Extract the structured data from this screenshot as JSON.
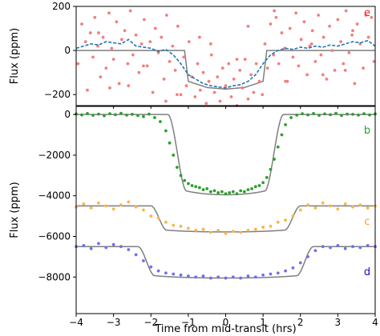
{
  "chart_data": [
    {
      "type": "scatter",
      "panel": "top",
      "xlim": [
        -4,
        4
      ],
      "ylim": [
        -250,
        200
      ],
      "yticks": [
        -200,
        0,
        200
      ],
      "ytick_labels": [
        "−200",
        "0",
        "200"
      ],
      "ylabel": "Flux (ppm)",
      "xlabel": "",
      "grid": false,
      "annotations": [
        {
          "text": "e",
          "color": "#e8262b"
        }
      ],
      "model": {
        "name": "",
        "color": "#7f7f7f",
        "x": [
          -4.0,
          -1.1,
          -1.0,
          -0.5,
          0.0,
          0.5,
          1.0,
          1.1,
          4.0
        ],
        "y": [
          0,
          0,
          -140,
          -168,
          -175,
          -168,
          -140,
          0,
          0
        ]
      },
      "binned": {
        "color": "#1f77b4",
        "style": "dashed",
        "x": [
          -4.0,
          -3.8,
          -3.6,
          -3.4,
          -3.2,
          -3.0,
          -2.8,
          -2.6,
          -2.4,
          -2.2,
          -2.0,
          -1.8,
          -1.6,
          -1.4,
          -1.2,
          -1.0,
          -0.8,
          -0.6,
          -0.4,
          -0.2,
          0.0,
          0.2,
          0.4,
          0.6,
          0.8,
          1.0,
          1.2,
          1.4,
          1.6,
          1.8,
          2.0,
          2.2,
          2.4,
          2.6,
          2.8,
          3.0,
          3.2,
          3.4,
          3.6,
          3.8,
          4.0
        ],
        "y": [
          10,
          20,
          30,
          25,
          40,
          35,
          30,
          50,
          20,
          15,
          10,
          -5,
          5,
          -20,
          -60,
          -110,
          -130,
          -150,
          -160,
          -165,
          -170,
          -160,
          -155,
          -140,
          -110,
          -60,
          -20,
          0,
          10,
          5,
          15,
          10,
          20,
          15,
          25,
          20,
          30,
          40,
          35,
          45,
          20
        ]
      },
      "points": {
        "color": "#f08080",
        "x": [
          -3.95,
          -3.85,
          -3.75,
          -3.7,
          -3.62,
          -3.55,
          -3.5,
          -3.42,
          -3.35,
          -3.28,
          -3.2,
          -3.12,
          -3.05,
          -3.0,
          -2.92,
          -2.85,
          -2.78,
          -2.7,
          -2.62,
          -2.55,
          -2.48,
          -2.4,
          -2.32,
          -2.25,
          -2.18,
          -2.1,
          -2.02,
          -1.95,
          -1.88,
          -1.8,
          -1.72,
          -1.65,
          -1.58,
          -1.5,
          -1.42,
          -1.35,
          -1.28,
          -1.2,
          -1.12,
          -1.05,
          -0.98,
          -0.9,
          -0.82,
          -0.75,
          -0.68,
          -0.6,
          -0.52,
          -0.45,
          -0.38,
          -0.3,
          -0.22,
          -0.15,
          -0.08,
          0.0,
          0.08,
          0.15,
          0.22,
          0.3,
          0.38,
          0.45,
          0.52,
          0.6,
          0.68,
          0.75,
          0.82,
          0.9,
          0.98,
          1.05,
          1.12,
          1.2,
          1.28,
          1.35,
          1.42,
          1.5,
          1.58,
          1.65,
          1.72,
          1.8,
          1.88,
          1.95,
          2.02,
          2.1,
          2.18,
          2.25,
          2.32,
          2.4,
          2.48,
          2.55,
          2.62,
          2.7,
          2.78,
          2.85,
          2.92,
          3.0,
          3.08,
          3.15,
          3.22,
          3.3,
          3.38,
          3.45,
          3.52,
          3.6,
          3.68,
          3.75,
          3.82,
          3.9,
          3.97,
          -3.4,
          -2.6,
          -1.6,
          -0.4,
          0.6,
          1.6,
          2.6,
          3.4,
          -3.1,
          -2.2,
          -1.3,
          -0.7,
          0.3,
          1.3,
          2.3,
          3.2
        ],
        "y": [
          -60,
          120,
          40,
          -180,
          80,
          -30,
          150,
          20,
          -120,
          60,
          -80,
          170,
          10,
          -40,
          130,
          -150,
          50,
          90,
          -60,
          180,
          -20,
          70,
          -100,
          30,
          140,
          -70,
          40,
          -190,
          100,
          -10,
          60,
          -130,
          160,
          -50,
          20,
          -90,
          110,
          -200,
          -30,
          -160,
          40,
          -120,
          -210,
          -60,
          -180,
          -100,
          -240,
          -140,
          -20,
          -190,
          -120,
          -230,
          -80,
          -160,
          -60,
          -210,
          -130,
          -250,
          -90,
          -170,
          -40,
          -220,
          -110,
          -190,
          -60,
          -140,
          -200,
          30,
          -80,
          120,
          -20,
          150,
          -60,
          80,
          10,
          -140,
          100,
          -30,
          170,
          -70,
          50,
          130,
          -110,
          20,
          90,
          -50,
          160,
          -20,
          60,
          -130,
          110,
          0,
          -90,
          140,
          40,
          -60,
          180,
          -10,
          70,
          -150,
          120,
          30,
          -80,
          160,
          60,
          150,
          -50,
          80,
          -160,
          -230,
          30,
          110,
          -140,
          -110,
          90,
          -170,
          -70,
          -200,
          60,
          -40,
          180,
          30,
          -90
        ]
      }
    },
    {
      "type": "scatter",
      "panel": "bottom",
      "xlim": [
        -4,
        4
      ],
      "ylim": [
        -9800,
        400
      ],
      "yticks": [
        -8000,
        -6000,
        -4000,
        -2000,
        0
      ],
      "ytick_labels": [
        "−8000",
        "−6000",
        "−4000",
        "−2000",
        "0"
      ],
      "xticks": [
        -4,
        -3,
        -2,
        -1,
        0,
        1,
        2,
        3,
        4
      ],
      "xtick_labels": [
        "−4",
        "−3",
        "−2",
        "−1",
        "0",
        "1",
        "2",
        "3",
        "4"
      ],
      "xlabel": "Time from mid-transit (hrs)",
      "ylabel": "Flux (ppm)",
      "grid": false,
      "annotations": [
        {
          "text": "b",
          "color": "#2ca02c"
        },
        {
          "text": "c",
          "color": "#ff9f1a"
        },
        {
          "text": "d",
          "color": "#1010d0"
        }
      ],
      "model_color": "#7f7f7f",
      "series": [
        {
          "name": "",
          "color": "#2ca02c",
          "offset": 0,
          "depth": 3950,
          "t_total": 1.55,
          "t_ingress": 0.5,
          "x": [
            -4.0,
            -3.85,
            -3.7,
            -3.55,
            -3.4,
            -3.25,
            -3.1,
            -2.95,
            -2.8,
            -2.65,
            -2.5,
            -2.35,
            -2.2,
            -2.05,
            -1.9,
            -1.75,
            -1.6,
            -1.5,
            -1.4,
            -1.3,
            -1.2,
            -1.1,
            -1.0,
            -0.9,
            -0.8,
            -0.7,
            -0.6,
            -0.5,
            -0.4,
            -0.3,
            -0.2,
            -0.1,
            0.0,
            0.1,
            0.2,
            0.3,
            0.4,
            0.5,
            0.6,
            0.7,
            0.8,
            0.9,
            1.0,
            1.1,
            1.2,
            1.3,
            1.4,
            1.5,
            1.6,
            1.75,
            1.9,
            2.05,
            2.2,
            2.35,
            2.5,
            2.65,
            2.8,
            2.95,
            3.1,
            3.25,
            3.4,
            3.55,
            3.7,
            3.85,
            4.0
          ],
          "y": [
            30,
            -20,
            50,
            -40,
            20,
            -60,
            40,
            -10,
            60,
            -30,
            10,
            -50,
            -100,
            20,
            -150,
            -350,
            -800,
            -1400,
            -2000,
            -2600,
            -3000,
            -3250,
            -3400,
            -3500,
            -3550,
            -3600,
            -3700,
            -3650,
            -3800,
            -3750,
            -3850,
            -3800,
            -3900,
            -3850,
            -3800,
            -3900,
            -3750,
            -3800,
            -3700,
            -3650,
            -3550,
            -3500,
            -3350,
            -3100,
            -2700,
            -2200,
            -1600,
            -1000,
            -500,
            -150,
            -30,
            40,
            -20,
            50,
            -40,
            30,
            -10,
            60,
            -50,
            20,
            10,
            -30,
            40,
            -20,
            30
          ]
        },
        {
          "name": "",
          "color": "#ffb347",
          "offset": -4500,
          "depth": 1280,
          "t_total": 2.0,
          "t_ingress": 0.42,
          "x": [
            -4.0,
            -3.8,
            -3.6,
            -3.4,
            -3.2,
            -3.0,
            -2.8,
            -2.6,
            -2.4,
            -2.2,
            -2.0,
            -1.8,
            -1.6,
            -1.4,
            -1.2,
            -1.0,
            -0.8,
            -0.6,
            -0.4,
            -0.2,
            0.0,
            0.2,
            0.4,
            0.6,
            0.8,
            1.0,
            1.2,
            1.4,
            1.6,
            1.8,
            2.0,
            2.2,
            2.4,
            2.6,
            2.8,
            3.0,
            3.2,
            3.4,
            3.6,
            3.8,
            4.0
          ],
          "y": [
            -4550,
            -4400,
            -4600,
            -4350,
            -4500,
            -4650,
            -4450,
            -4300,
            -4550,
            -4700,
            -5000,
            -5100,
            -5300,
            -5450,
            -5500,
            -5600,
            -5700,
            -5650,
            -5800,
            -5700,
            -5850,
            -5750,
            -5800,
            -5700,
            -5650,
            -5550,
            -5500,
            -5300,
            -5200,
            -5000,
            -4700,
            -4450,
            -4600,
            -4350,
            -4500,
            -4650,
            -4400,
            -4550,
            -4450,
            -4600,
            -4500
          ]
        },
        {
          "name": "",
          "color": "#6f6ff0",
          "offset": -6500,
          "depth": 1550,
          "t_total": 2.35,
          "t_ingress": 0.45,
          "x": [
            -4.0,
            -3.8,
            -3.6,
            -3.4,
            -3.2,
            -3.0,
            -2.8,
            -2.6,
            -2.4,
            -2.2,
            -2.0,
            -1.8,
            -1.6,
            -1.4,
            -1.2,
            -1.0,
            -0.8,
            -0.6,
            -0.4,
            -0.2,
            0.0,
            0.2,
            0.4,
            0.6,
            0.8,
            1.0,
            1.2,
            1.4,
            1.6,
            1.8,
            2.0,
            2.2,
            2.4,
            2.6,
            2.8,
            3.0,
            3.2,
            3.4,
            3.6,
            3.8,
            4.0
          ],
          "y": [
            -6500,
            -6450,
            -6600,
            -6350,
            -6550,
            -6400,
            -6500,
            -6650,
            -6900,
            -7200,
            -7500,
            -7700,
            -7800,
            -7850,
            -7900,
            -7950,
            -8000,
            -7950,
            -8050,
            -8000,
            -8050,
            -8000,
            -8050,
            -7950,
            -8000,
            -7900,
            -7850,
            -7800,
            -7700,
            -7550,
            -7300,
            -7000,
            -6700,
            -6500,
            -6550,
            -6450,
            -6600,
            -6500,
            -6550,
            -6450,
            -6500
          ]
        }
      ]
    }
  ]
}
